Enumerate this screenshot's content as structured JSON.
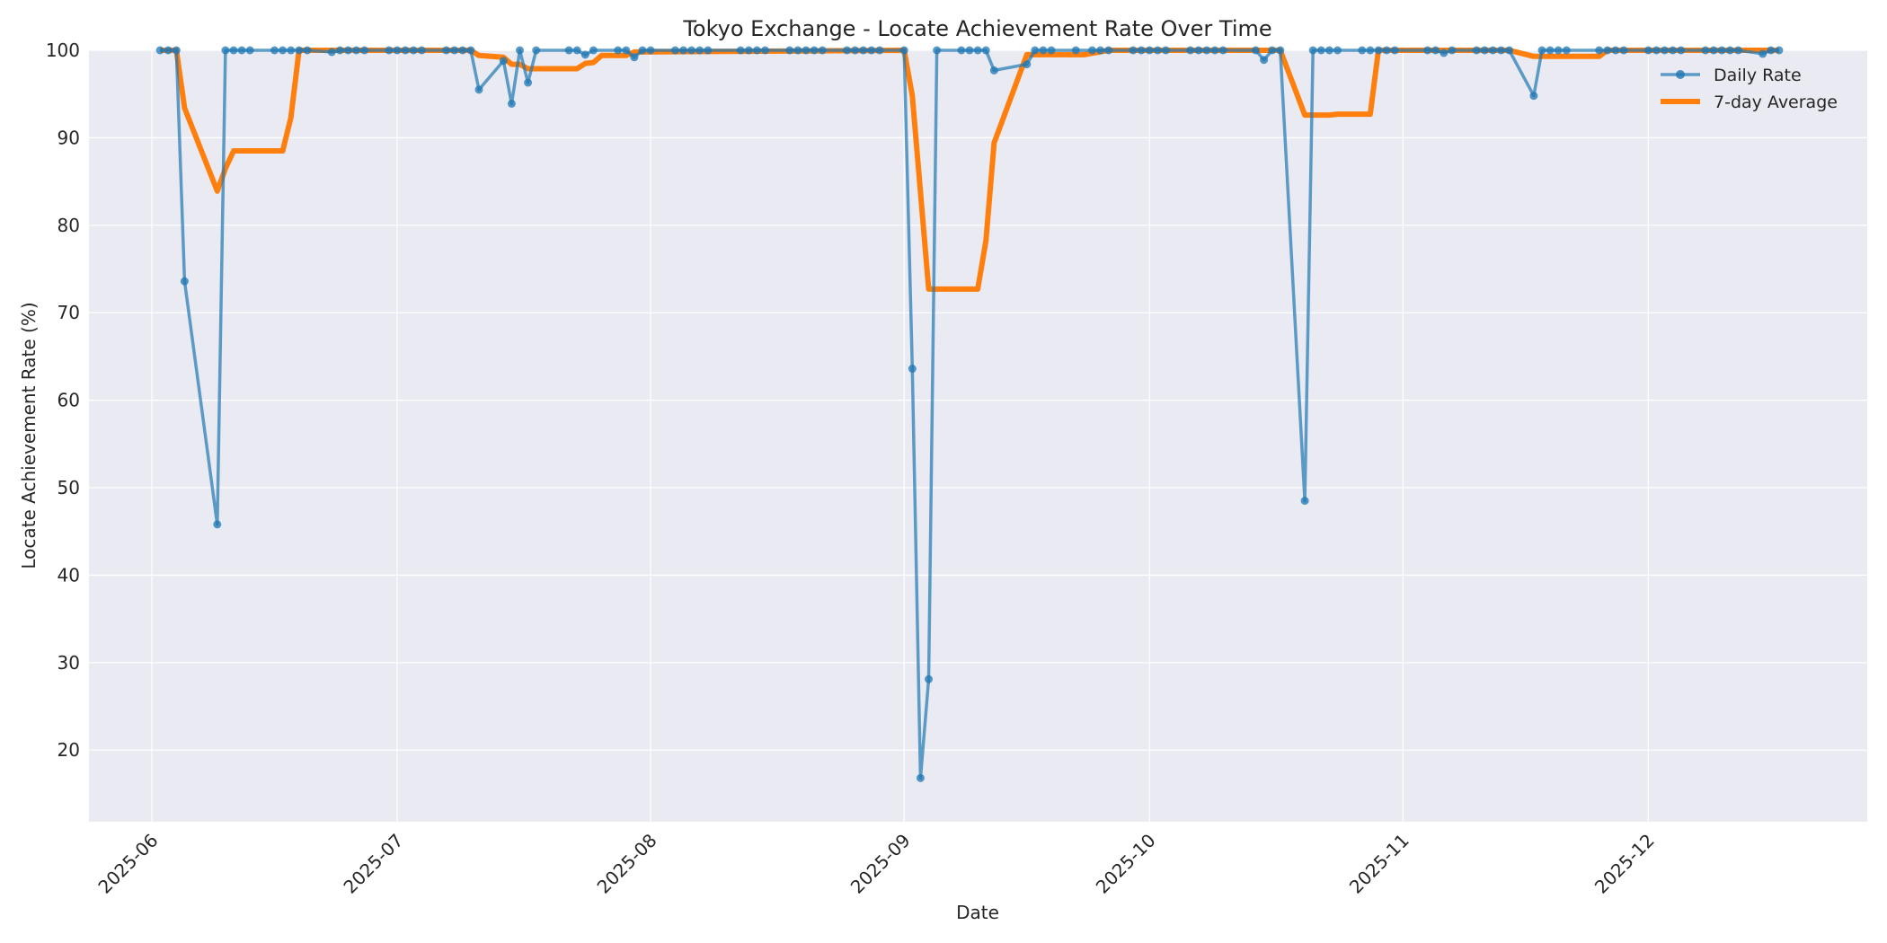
{
  "chart_data": {
    "type": "line",
    "title": "Tokyo Exchange - Locate Achievement Rate Over Time",
    "xlabel": "Date",
    "ylabel": "Locate Achievement Rate (%)",
    "ylim": [
      11.5,
      100
    ],
    "yticks": [
      20,
      30,
      40,
      50,
      60,
      70,
      80,
      90,
      100
    ],
    "xticks": [
      "2025-06",
      "2025-07",
      "2025-08",
      "2025-09",
      "2025-10",
      "2025-11",
      "2025-12"
    ],
    "grid": true,
    "legend_position": "upper right",
    "colors": {
      "daily": "#1f77b4",
      "avg": "#ff7f0e",
      "background": "#eaeaf2",
      "grid": "#ffffff"
    },
    "series": [
      {
        "name": "Daily Rate",
        "style": "line+markers",
        "points": [
          [
            "2025-06-02",
            100
          ],
          [
            "2025-06-03",
            100
          ],
          [
            "2025-06-04",
            100
          ],
          [
            "2025-06-05",
            73.6
          ],
          [
            "2025-06-09",
            45.8
          ],
          [
            "2025-06-10",
            100
          ],
          [
            "2025-06-11",
            100
          ],
          [
            "2025-06-12",
            100
          ],
          [
            "2025-06-13",
            100
          ],
          [
            "2025-06-16",
            100
          ],
          [
            "2025-06-17",
            100
          ],
          [
            "2025-06-18",
            100
          ],
          [
            "2025-06-19",
            100
          ],
          [
            "2025-06-20",
            100
          ],
          [
            "2025-06-23",
            99.8
          ],
          [
            "2025-06-24",
            100
          ],
          [
            "2025-06-25",
            100
          ],
          [
            "2025-06-26",
            100
          ],
          [
            "2025-06-27",
            100
          ],
          [
            "2025-06-30",
            100
          ],
          [
            "2025-07-01",
            100
          ],
          [
            "2025-07-02",
            100
          ],
          [
            "2025-07-03",
            100
          ],
          [
            "2025-07-04",
            100
          ],
          [
            "2025-07-07",
            100
          ],
          [
            "2025-07-08",
            100
          ],
          [
            "2025-07-09",
            100
          ],
          [
            "2025-07-10",
            100
          ],
          [
            "2025-07-11",
            95.5
          ],
          [
            "2025-07-14",
            98.8
          ],
          [
            "2025-07-15",
            93.9
          ],
          [
            "2025-07-16",
            100
          ],
          [
            "2025-07-17",
            96.3
          ],
          [
            "2025-07-18",
            100
          ],
          [
            "2025-07-22",
            100
          ],
          [
            "2025-07-23",
            100
          ],
          [
            "2025-07-24",
            99.5
          ],
          [
            "2025-07-25",
            100
          ],
          [
            "2025-07-28",
            100
          ],
          [
            "2025-07-29",
            100
          ],
          [
            "2025-07-30",
            99.2
          ],
          [
            "2025-07-31",
            100
          ],
          [
            "2025-08-01",
            100
          ],
          [
            "2025-08-04",
            100
          ],
          [
            "2025-08-05",
            100
          ],
          [
            "2025-08-06",
            100
          ],
          [
            "2025-08-07",
            100
          ],
          [
            "2025-08-08",
            100
          ],
          [
            "2025-08-12",
            100
          ],
          [
            "2025-08-13",
            100
          ],
          [
            "2025-08-14",
            100
          ],
          [
            "2025-08-15",
            100
          ],
          [
            "2025-08-18",
            100
          ],
          [
            "2025-08-19",
            100
          ],
          [
            "2025-08-20",
            100
          ],
          [
            "2025-08-21",
            100
          ],
          [
            "2025-08-22",
            100
          ],
          [
            "2025-08-25",
            100
          ],
          [
            "2025-08-26",
            100
          ],
          [
            "2025-08-27",
            100
          ],
          [
            "2025-08-28",
            100
          ],
          [
            "2025-08-29",
            100
          ],
          [
            "2025-09-01",
            100
          ],
          [
            "2025-09-02",
            63.6
          ],
          [
            "2025-09-03",
            16.8
          ],
          [
            "2025-09-04",
            28.1
          ],
          [
            "2025-09-05",
            100
          ],
          [
            "2025-09-08",
            100
          ],
          [
            "2025-09-09",
            100
          ],
          [
            "2025-09-10",
            100
          ],
          [
            "2025-09-11",
            100
          ],
          [
            "2025-09-12",
            97.7
          ],
          [
            "2025-09-16",
            98.4
          ],
          [
            "2025-09-17",
            100
          ],
          [
            "2025-09-18",
            100
          ],
          [
            "2025-09-19",
            100
          ],
          [
            "2025-09-22",
            100
          ],
          [
            "2025-09-24",
            100
          ],
          [
            "2025-09-25",
            100
          ],
          [
            "2025-09-26",
            100
          ],
          [
            "2025-09-29",
            100
          ],
          [
            "2025-09-30",
            100
          ],
          [
            "2025-10-01",
            100
          ],
          [
            "2025-10-02",
            100
          ],
          [
            "2025-10-03",
            100
          ],
          [
            "2025-10-06",
            100
          ],
          [
            "2025-10-07",
            100
          ],
          [
            "2025-10-08",
            100
          ],
          [
            "2025-10-09",
            100
          ],
          [
            "2025-10-10",
            100
          ],
          [
            "2025-10-14",
            100
          ],
          [
            "2025-10-15",
            98.9
          ],
          [
            "2025-10-16",
            100
          ],
          [
            "2025-10-17",
            100
          ],
          [
            "2025-10-20",
            48.5
          ],
          [
            "2025-10-21",
            100
          ],
          [
            "2025-10-22",
            100
          ],
          [
            "2025-10-23",
            100
          ],
          [
            "2025-10-24",
            100
          ],
          [
            "2025-10-27",
            100
          ],
          [
            "2025-10-28",
            100
          ],
          [
            "2025-10-29",
            100
          ],
          [
            "2025-10-30",
            100
          ],
          [
            "2025-10-31",
            100
          ],
          [
            "2025-11-04",
            100
          ],
          [
            "2025-11-05",
            100
          ],
          [
            "2025-11-06",
            99.7
          ],
          [
            "2025-11-07",
            100
          ],
          [
            "2025-11-10",
            100
          ],
          [
            "2025-11-11",
            100
          ],
          [
            "2025-11-12",
            100
          ],
          [
            "2025-11-13",
            100
          ],
          [
            "2025-11-14",
            100
          ],
          [
            "2025-11-17",
            94.8
          ],
          [
            "2025-11-18",
            100
          ],
          [
            "2025-11-19",
            100
          ],
          [
            "2025-11-20",
            100
          ],
          [
            "2025-11-21",
            100
          ],
          [
            "2025-11-25",
            100
          ],
          [
            "2025-11-26",
            100
          ],
          [
            "2025-11-27",
            100
          ],
          [
            "2025-11-28",
            100
          ],
          [
            "2025-12-01",
            100
          ],
          [
            "2025-12-02",
            100
          ],
          [
            "2025-12-03",
            100
          ],
          [
            "2025-12-04",
            100
          ],
          [
            "2025-12-05",
            100
          ],
          [
            "2025-12-08",
            100
          ],
          [
            "2025-12-09",
            100
          ],
          [
            "2025-12-10",
            100
          ],
          [
            "2025-12-11",
            100
          ],
          [
            "2025-12-12",
            100
          ],
          [
            "2025-12-15",
            99.6
          ],
          [
            "2025-12-16",
            100
          ],
          [
            "2025-12-17",
            100
          ]
        ]
      },
      {
        "name": "7-day Average",
        "style": "line",
        "points": [
          [
            "2025-06-02",
            100
          ],
          [
            "2025-06-04",
            100
          ],
          [
            "2025-06-05",
            93.4
          ],
          [
            "2025-06-09",
            83.9
          ],
          [
            "2025-06-10",
            86.5
          ],
          [
            "2025-06-11",
            88.5
          ],
          [
            "2025-06-17",
            88.5
          ],
          [
            "2025-06-18",
            92.3
          ],
          [
            "2025-06-19",
            100
          ],
          [
            "2025-07-10",
            100
          ],
          [
            "2025-07-11",
            99.4
          ],
          [
            "2025-07-14",
            99.2
          ],
          [
            "2025-07-15",
            98.4
          ],
          [
            "2025-07-16",
            98.4
          ],
          [
            "2025-07-17",
            97.9
          ],
          [
            "2025-07-23",
            97.9
          ],
          [
            "2025-07-24",
            98.5
          ],
          [
            "2025-07-25",
            98.6
          ],
          [
            "2025-07-26",
            99.4
          ],
          [
            "2025-07-29",
            99.4
          ],
          [
            "2025-07-30",
            99.8
          ],
          [
            "2025-09-01",
            100
          ],
          [
            "2025-09-02",
            94.8
          ],
          [
            "2025-09-04",
            72.7
          ],
          [
            "2025-09-10",
            72.7
          ],
          [
            "2025-09-11",
            78.2
          ],
          [
            "2025-09-12",
            89.4
          ],
          [
            "2025-09-16",
            99.5
          ],
          [
            "2025-09-23",
            99.5
          ],
          [
            "2025-09-26",
            100
          ],
          [
            "2025-10-17",
            100
          ],
          [
            "2025-10-20",
            92.6
          ],
          [
            "2025-10-23",
            92.6
          ],
          [
            "2025-10-24",
            92.7
          ],
          [
            "2025-10-28",
            92.7
          ],
          [
            "2025-10-29",
            100
          ],
          [
            "2025-11-14",
            100
          ],
          [
            "2025-11-17",
            99.3
          ],
          [
            "2025-11-25",
            99.3
          ],
          [
            "2025-11-26",
            100
          ],
          [
            "2025-12-17",
            100
          ]
        ]
      }
    ]
  }
}
